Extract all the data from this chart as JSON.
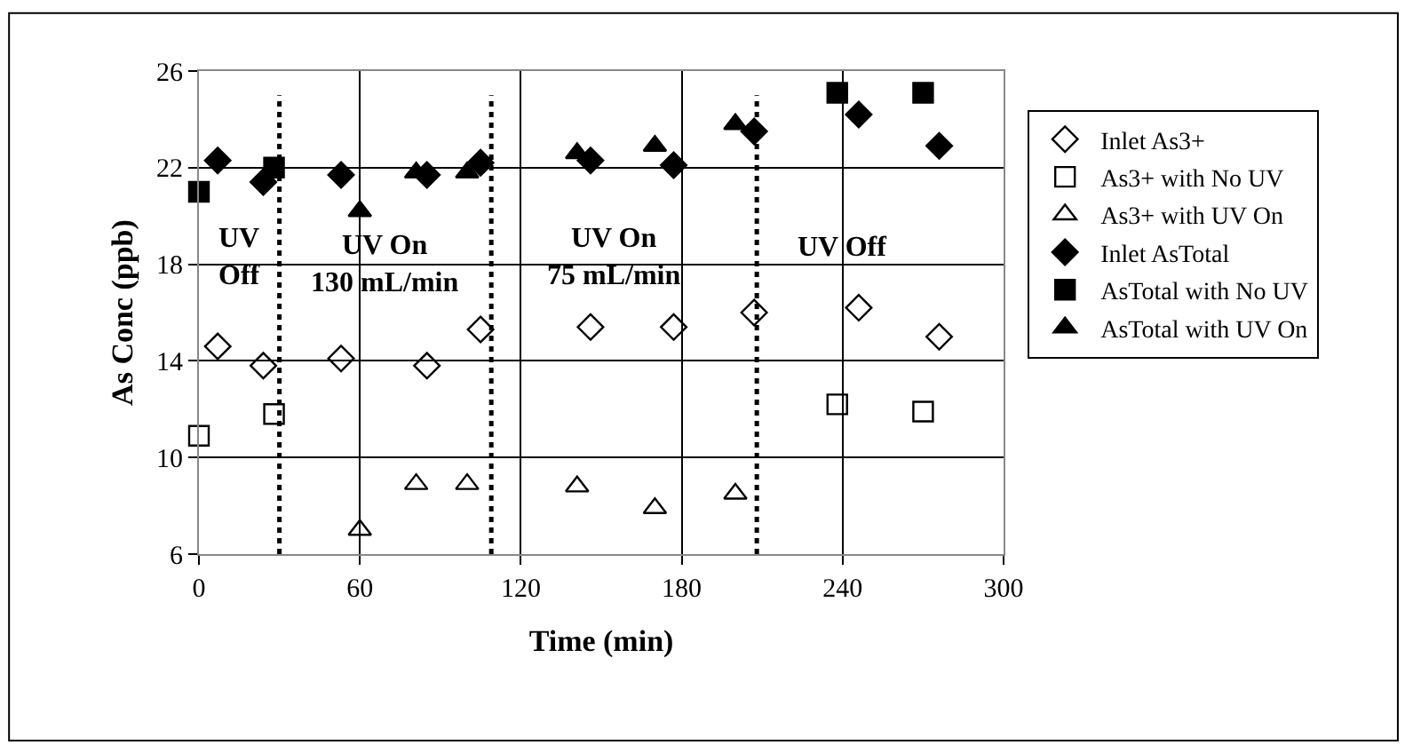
{
  "chart_data": {
    "type": "scatter",
    "xlabel": "Time (min)",
    "ylabel": "As Conc (ppb)",
    "xlim": [
      0,
      300
    ],
    "xticks": [
      0,
      60,
      120,
      180,
      240,
      300
    ],
    "ylim": [
      6,
      26
    ],
    "yticks": [
      6,
      10,
      14,
      18,
      22,
      26
    ],
    "grid": true,
    "legend": "right",
    "series": [
      {
        "name": "Inlet As3+",
        "color": "#000000",
        "marker": "diamond-open",
        "x": [
          7,
          24,
          53,
          85,
          105,
          146,
          177,
          207,
          246,
          276
        ],
        "values": [
          14.6,
          13.8,
          14.1,
          13.8,
          15.3,
          15.4,
          15.4,
          16.0,
          16.2,
          15.0
        ]
      },
      {
        "name": "As3+ with No UV",
        "color": "#000000",
        "marker": "square-open",
        "x": [
          0,
          28,
          238,
          270
        ],
        "values": [
          10.9,
          11.8,
          12.2,
          11.9
        ]
      },
      {
        "name": "As3+ with UV On",
        "color": "#000000",
        "marker": "triangle-up-open",
        "x": [
          60,
          81,
          100,
          141,
          170,
          200
        ],
        "values": [
          7.0,
          8.9,
          8.9,
          8.8,
          7.9,
          8.5
        ]
      },
      {
        "name": "Inlet AsTotal",
        "color": "#000000",
        "marker": "diamond",
        "x": [
          7,
          24,
          53,
          85,
          105,
          146,
          177,
          207,
          246,
          276
        ],
        "values": [
          22.3,
          21.4,
          21.7,
          21.7,
          22.2,
          22.3,
          22.1,
          23.5,
          24.2,
          22.9
        ]
      },
      {
        "name": "AsTotal with No UV",
        "color": "#000000",
        "marker": "square",
        "x": [
          0,
          28,
          238,
          270
        ],
        "values": [
          21.0,
          22.0,
          25.1,
          25.1
        ]
      },
      {
        "name": "AsTotal with UV On",
        "color": "#000000",
        "marker": "triangle-up",
        "x": [
          60,
          81,
          100,
          141,
          170,
          200
        ],
        "values": [
          20.2,
          21.8,
          21.8,
          22.6,
          22.9,
          23.8
        ]
      }
    ],
    "ref_lines": [
      {
        "axis": "x",
        "value": 30,
        "color": "#000000",
        "line_style": "dotted"
      },
      {
        "axis": "x",
        "value": 109,
        "color": "#000000",
        "line_style": "dotted"
      },
      {
        "axis": "x",
        "value": 208,
        "color": "#000000",
        "line_style": "dotted"
      }
    ],
    "annotations": [
      "UV\nOff",
      "UV On\n130 mL/min",
      "UV On\n75 mL/min",
      "UV Off"
    ]
  }
}
